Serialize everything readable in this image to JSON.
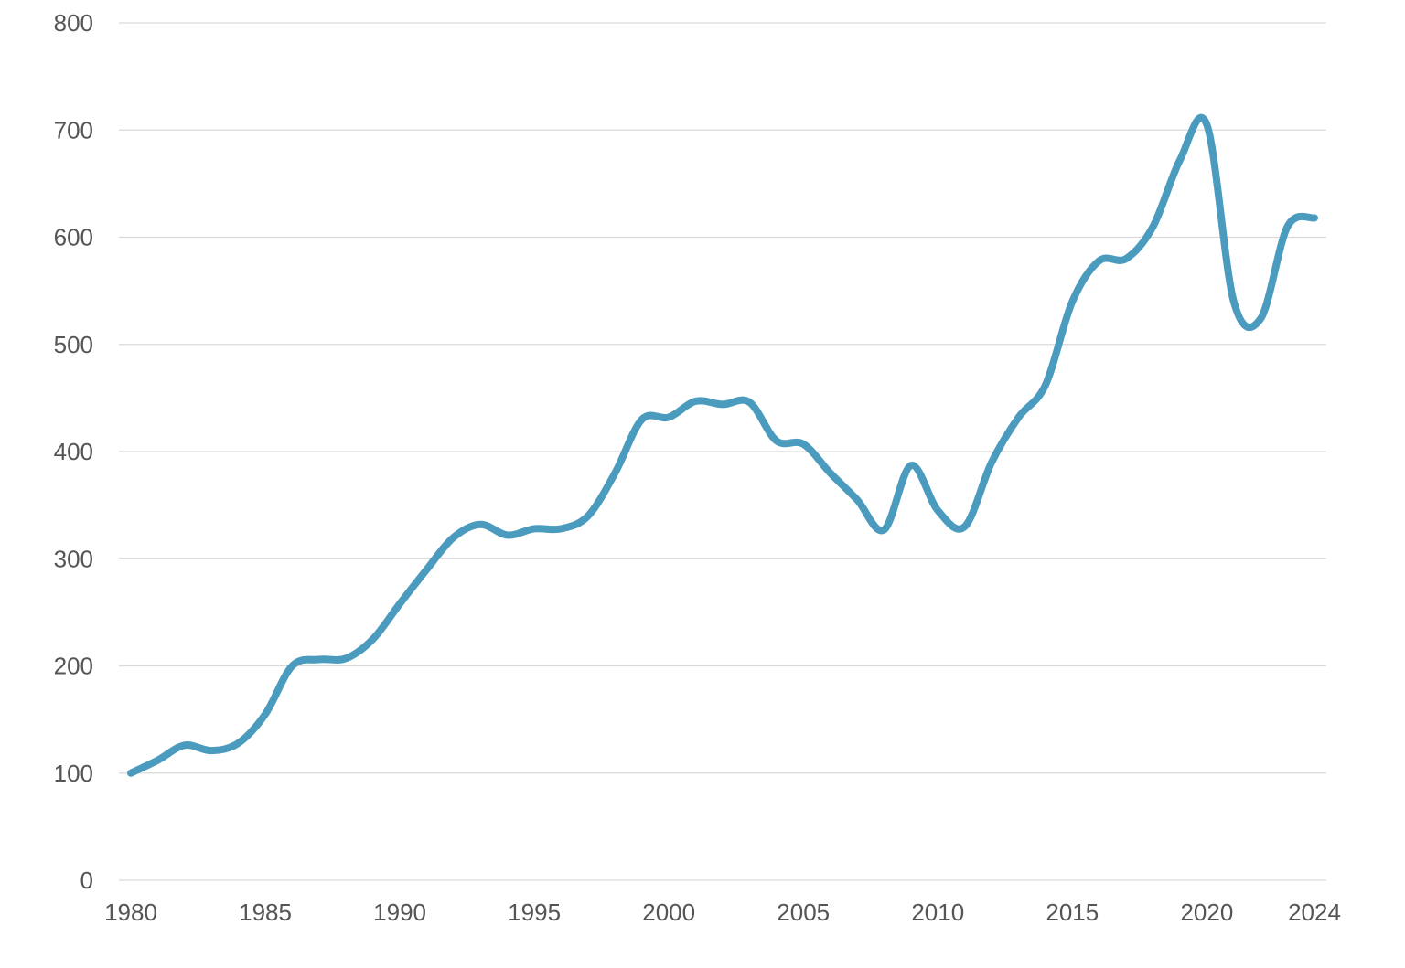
{
  "chart_data": {
    "type": "line",
    "title": "",
    "xlabel": "",
    "ylabel": "",
    "grid": true,
    "legend": "none",
    "colors": {
      "line": "#4b9bbf",
      "grid": "#d9d9d9",
      "text": "#555555"
    },
    "xlim": [
      1980,
      2024
    ],
    "ylim": [
      0,
      800
    ],
    "x_ticks": [
      1980,
      1985,
      1990,
      1995,
      2000,
      2005,
      2010,
      2015,
      2020,
      2024
    ],
    "y_ticks": [
      0,
      100,
      200,
      300,
      400,
      500,
      600,
      700,
      800
    ],
    "series": [
      {
        "x": [
          1980,
          1981,
          1982,
          1983,
          1984,
          1985,
          1986,
          1987,
          1988,
          1989,
          1990,
          1991,
          1992,
          1993,
          1994,
          1995,
          1996,
          1997,
          1998,
          1999,
          2000,
          2001,
          2002,
          2003,
          2004,
          2005,
          2006,
          2007,
          2008,
          2009,
          2010,
          2011,
          2012,
          2013,
          2014,
          2015,
          2016,
          2017,
          2018,
          2019,
          2020,
          2021,
          2022,
          2023,
          2024
        ],
        "values": [
          100,
          112,
          126,
          121,
          128,
          155,
          200,
          206,
          207,
          225,
          258,
          290,
          320,
          332,
          322,
          328,
          328,
          340,
          380,
          430,
          432,
          447,
          444,
          446,
          410,
          407,
          380,
          355,
          327,
          387,
          345,
          330,
          390,
          432,
          462,
          540,
          578,
          580,
          610,
          672,
          705,
          540,
          524,
          610,
          618
        ]
      }
    ]
  }
}
